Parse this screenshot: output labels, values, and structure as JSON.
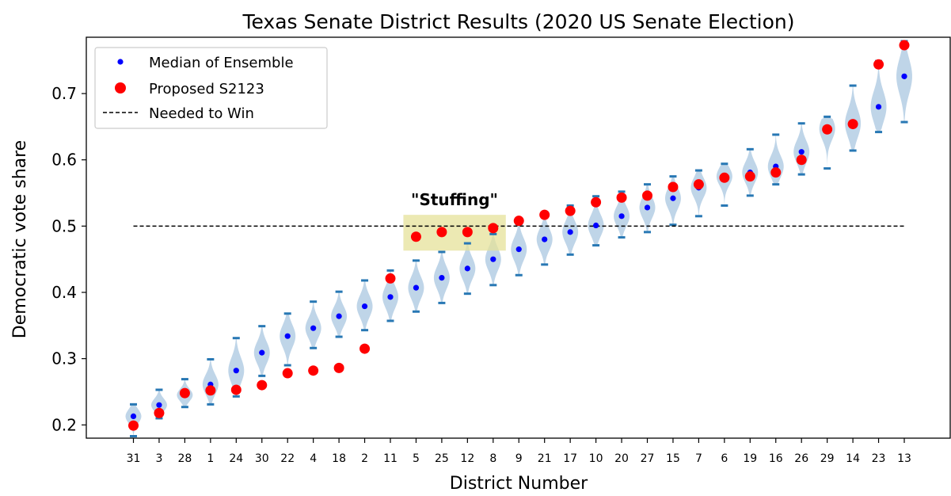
{
  "chart_data": {
    "type": "violin",
    "title": "Texas Senate District Results  (2020 US Senate Election)",
    "xlabel": "District Number",
    "ylabel": "Democratic vote share",
    "ylim": [
      0.18,
      0.785
    ],
    "yticks": [
      0.2,
      0.3,
      0.4,
      0.5,
      0.6,
      0.7
    ],
    "categories": [
      "31",
      "3",
      "28",
      "1",
      "24",
      "30",
      "22",
      "4",
      "18",
      "2",
      "11",
      "5",
      "25",
      "12",
      "8",
      "9",
      "21",
      "17",
      "10",
      "20",
      "27",
      "15",
      "7",
      "6",
      "19",
      "16",
      "26",
      "29",
      "14",
      "23",
      "13"
    ],
    "series": [
      {
        "name": "Median of Ensemble",
        "color": "#0000ff",
        "values": [
          0.213,
          0.23,
          0.245,
          0.261,
          0.282,
          0.309,
          0.334,
          0.346,
          0.364,
          0.379,
          0.393,
          0.407,
          0.422,
          0.436,
          0.45,
          0.465,
          0.48,
          0.491,
          0.501,
          0.515,
          0.528,
          0.542,
          0.558,
          0.575,
          0.581,
          0.59,
          0.612,
          0.647,
          0.655,
          0.68,
          0.726
        ]
      },
      {
        "name": "Proposed S2123",
        "color": "#ff0000",
        "values": [
          0.199,
          0.218,
          0.248,
          0.252,
          0.253,
          0.26,
          0.278,
          0.282,
          0.286,
          0.315,
          0.421,
          0.484,
          0.491,
          0.491,
          0.497,
          0.508,
          0.517,
          0.523,
          0.536,
          0.543,
          0.546,
          0.559,
          0.563,
          0.573,
          0.575,
          0.581,
          0.6,
          0.646,
          0.654,
          0.744,
          0.773
        ]
      },
      {
        "name": "Needed to Win",
        "value": 0.5,
        "color": "#000000"
      }
    ],
    "ensemble_min": [
      0.183,
      0.21,
      0.227,
      0.231,
      0.243,
      0.274,
      0.29,
      0.316,
      0.333,
      0.343,
      0.357,
      0.371,
      0.384,
      0.398,
      0.411,
      0.426,
      0.442,
      0.457,
      0.471,
      0.483,
      0.491,
      0.502,
      0.515,
      0.531,
      0.546,
      0.563,
      0.578,
      0.587,
      0.614,
      0.642,
      0.657
    ],
    "ensemble_max": [
      0.231,
      0.253,
      0.269,
      0.299,
      0.331,
      0.349,
      0.368,
      0.386,
      0.401,
      0.418,
      0.433,
      0.448,
      0.461,
      0.474,
      0.488,
      0.503,
      0.516,
      0.531,
      0.545,
      0.552,
      0.563,
      0.575,
      0.584,
      0.594,
      0.616,
      0.638,
      0.655,
      0.665,
      0.712,
      0.749,
      0.779
    ],
    "annotation": {
      "text": "\"Stuffing\"",
      "highlight_categories": [
        "5",
        "25",
        "12",
        "8"
      ]
    },
    "legend": "top-left",
    "grid": false,
    "colors": {
      "violin": "#b8d0e6",
      "extrema": "#2878b4",
      "highlight": "#e6e29a"
    }
  }
}
